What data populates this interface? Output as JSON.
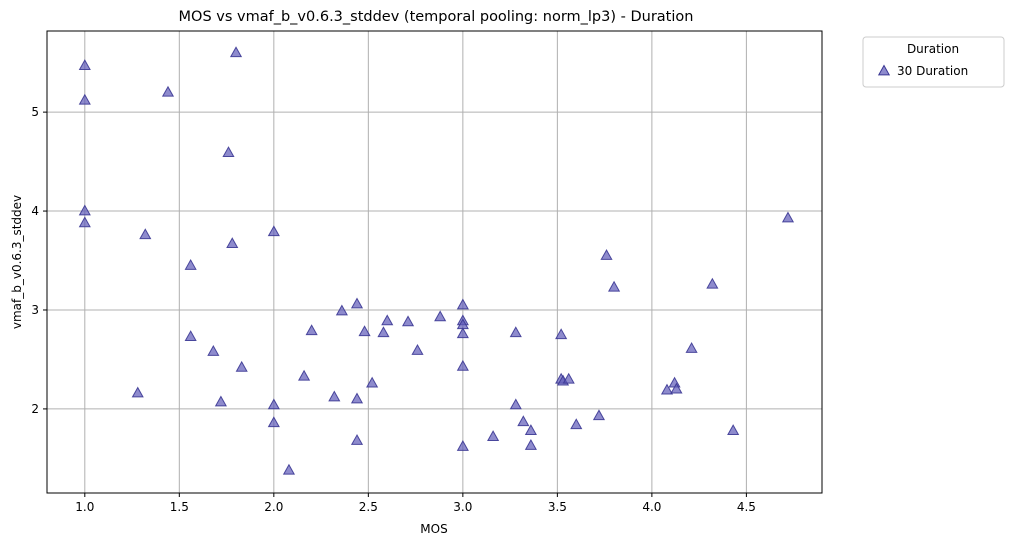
{
  "chart_data": {
    "type": "scatter",
    "title": "MOS vs vmaf_b_v0.6.3_stddev (temporal pooling: norm_lp3) - Duration",
    "xlabel": "MOS",
    "ylabel": "vmaf_b_v0.6.3_stddev",
    "xlim": [
      0.8,
      4.9
    ],
    "ylim": [
      1.15,
      5.82
    ],
    "xticks": [
      1.0,
      1.5,
      2.0,
      2.5,
      3.0,
      3.5,
      4.0,
      4.5
    ],
    "xtick_labels": [
      "1.0",
      "1.5",
      "2.0",
      "2.5",
      "3.0",
      "3.5",
      "4.0",
      "4.5"
    ],
    "yticks": [
      2,
      3,
      4,
      5
    ],
    "ytick_labels": [
      "2",
      "3",
      "4",
      "5"
    ],
    "grid": true,
    "legend": {
      "title": "Duration",
      "placement": "outside-top-right"
    },
    "series": [
      {
        "name": "30 Duration",
        "marker": "triangle",
        "color": "#5e5ab8",
        "points": [
          [
            1.0,
            5.47
          ],
          [
            1.0,
            5.12
          ],
          [
            1.0,
            4.0
          ],
          [
            1.0,
            3.88
          ],
          [
            1.28,
            2.16
          ],
          [
            1.32,
            3.76
          ],
          [
            1.44,
            5.2
          ],
          [
            1.56,
            3.45
          ],
          [
            1.56,
            2.73
          ],
          [
            1.68,
            2.58
          ],
          [
            1.72,
            2.07
          ],
          [
            1.76,
            4.59
          ],
          [
            1.78,
            3.67
          ],
          [
            1.8,
            5.6
          ],
          [
            1.83,
            2.42
          ],
          [
            2.0,
            3.79
          ],
          [
            2.0,
            2.04
          ],
          [
            2.0,
            1.86
          ],
          [
            2.08,
            1.38
          ],
          [
            2.16,
            2.33
          ],
          [
            2.2,
            2.79
          ],
          [
            2.32,
            2.12
          ],
          [
            2.36,
            2.99
          ],
          [
            2.44,
            3.06
          ],
          [
            2.44,
            2.1
          ],
          [
            2.44,
            1.68
          ],
          [
            2.48,
            2.78
          ],
          [
            2.52,
            2.26
          ],
          [
            2.58,
            2.77
          ],
          [
            2.6,
            2.89
          ],
          [
            2.71,
            2.88
          ],
          [
            2.76,
            2.59
          ],
          [
            2.88,
            2.93
          ],
          [
            3.0,
            3.05
          ],
          [
            3.0,
            2.89
          ],
          [
            3.0,
            2.85
          ],
          [
            3.0,
            2.76
          ],
          [
            3.0,
            2.43
          ],
          [
            3.0,
            1.62
          ],
          [
            3.16,
            1.72
          ],
          [
            3.28,
            2.77
          ],
          [
            3.28,
            2.04
          ],
          [
            3.32,
            1.87
          ],
          [
            3.36,
            1.78
          ],
          [
            3.36,
            1.63
          ],
          [
            3.52,
            2.75
          ],
          [
            3.52,
            2.3
          ],
          [
            3.53,
            2.28
          ],
          [
            3.56,
            2.3
          ],
          [
            3.6,
            1.84
          ],
          [
            3.72,
            1.93
          ],
          [
            3.76,
            3.55
          ],
          [
            3.8,
            3.23
          ],
          [
            4.08,
            2.19
          ],
          [
            4.12,
            2.26
          ],
          [
            4.13,
            2.2
          ],
          [
            4.21,
            2.61
          ],
          [
            4.32,
            3.26
          ],
          [
            4.43,
            1.78
          ],
          [
            4.72,
            3.93
          ]
        ]
      }
    ]
  }
}
